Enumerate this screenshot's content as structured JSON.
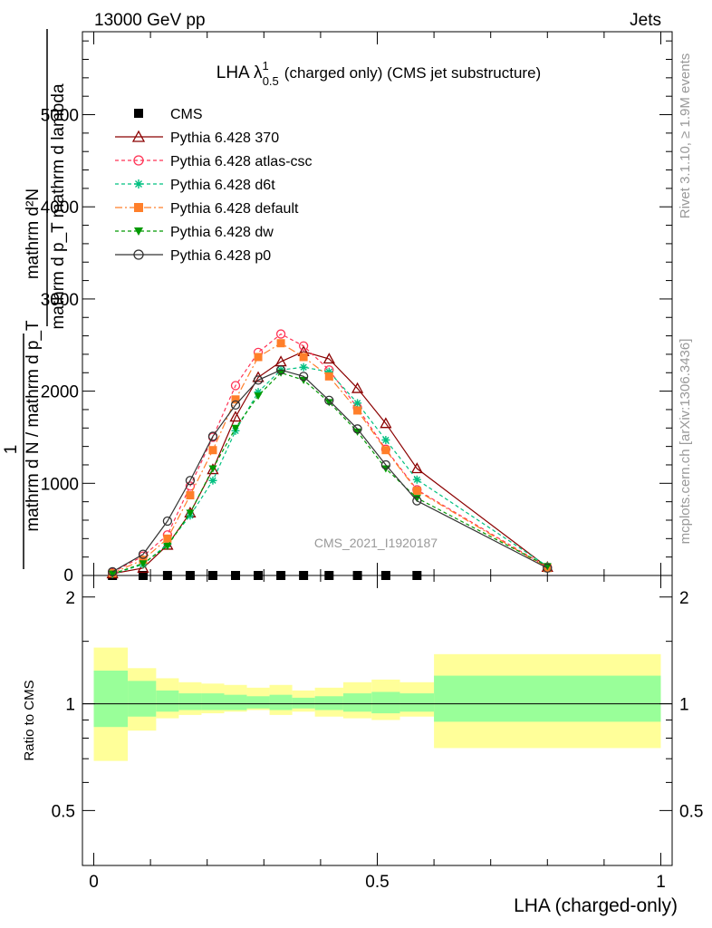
{
  "header": {
    "left": "13000 GeV pp",
    "right": "Jets"
  },
  "side": {
    "rivet": "Rivet 3.1.10, ≥ 1.9M events",
    "mcplots": "mcplots.cern.ch [arXiv:1306.3436]"
  },
  "watermark": "CMS_2021_I1920187",
  "colors": {
    "cms": "#000000",
    "p370": "#8b0000",
    "atlas_csc": "#ff3355",
    "d6t": "#00c080",
    "default": "#ff7f2a",
    "dw": "#009900",
    "p0": "#333333",
    "band_inner": "#99ff99",
    "band_outer": "#ffff99"
  },
  "chart_data": [
    {
      "type": "line",
      "title_main": "LHA λ",
      "title_sup": "1",
      "title_sub": "0.5",
      "title_rest": "(charged only) (CMS jet substructure)",
      "ylabel_top": "mathrm d²N",
      "ylabel_mid": "mathrm d p_T mathrm d lambda",
      "ylabel_one": "1",
      "ylabel_bottom": "mathrm d N / mathrm d p_T",
      "ylim": [
        0,
        5900
      ],
      "xlim": [
        -0.02,
        1.02
      ],
      "yticks": [
        {
          "v": 1000,
          "label": "1000"
        },
        {
          "v": 2000,
          "label": "2000"
        },
        {
          "v": 3000,
          "label": "3000"
        },
        {
          "v": 4000,
          "label": "4000"
        },
        {
          "v": 5000,
          "label": "5000"
        }
      ],
      "x": [
        0.033,
        0.087,
        0.13,
        0.17,
        0.21,
        0.25,
        0.29,
        0.33,
        0.37,
        0.415,
        0.465,
        0.515,
        0.57,
        0.8
      ],
      "series": [
        {
          "key": "cms",
          "name": "CMS",
          "marker": "square",
          "dash": "",
          "values": [
            0,
            0,
            0,
            0,
            0,
            0,
            0,
            0,
            0,
            0,
            0,
            0,
            0,
            null
          ]
        },
        {
          "key": "p370",
          "name": "Pythia 6.428 370",
          "marker": "triangle",
          "dash": "",
          "values": [
            20,
            80,
            330,
            680,
            1150,
            1720,
            2150,
            2320,
            2430,
            2350,
            2030,
            1650,
            1160,
            90
          ]
        },
        {
          "key": "atlas_csc",
          "name": "Pythia 6.428 atlas-csc",
          "marker": "circle",
          "dash": "4,3",
          "values": [
            35,
            210,
            440,
            970,
            1500,
            2060,
            2420,
            2620,
            2490,
            2230,
            1820,
            1370,
            930,
            90
          ]
        },
        {
          "key": "d6t",
          "name": "Pythia 6.428 d6t",
          "marker": "star",
          "dash": "4,3",
          "values": [
            15,
            120,
            340,
            650,
            1030,
            1570,
            1990,
            2230,
            2260,
            2210,
            1870,
            1470,
            1040,
            100
          ]
        },
        {
          "key": "default",
          "name": "Pythia 6.428 default",
          "marker": "square",
          "dash": "8,3,2,3",
          "values": [
            25,
            170,
            400,
            870,
            1360,
            1910,
            2370,
            2520,
            2370,
            2160,
            1790,
            1360,
            920,
            80
          ]
        },
        {
          "key": "dw",
          "name": "Pythia 6.428 dw",
          "marker": "triangle-down",
          "dash": "4,3",
          "values": [
            18,
            130,
            320,
            680,
            1160,
            1600,
            1950,
            2200,
            2120,
            1880,
            1560,
            1160,
            840,
            100
          ]
        },
        {
          "key": "p0",
          "name": "Pythia 6.428 p0",
          "marker": "open-circle",
          "dash": "",
          "values": [
            40,
            230,
            590,
            1030,
            1510,
            1850,
            2120,
            2230,
            2160,
            1900,
            1590,
            1200,
            810,
            80
          ]
        }
      ]
    },
    {
      "type": "area",
      "ylabel": "Ratio to CMS",
      "xlabel": "LHA (charged-only)",
      "ylim": [
        0.35,
        2.3
      ],
      "yticks": [
        {
          "v": 0.5,
          "label": "0.5"
        },
        {
          "v": 1,
          "label": "1"
        },
        {
          "v": 2,
          "label": "2"
        }
      ],
      "xticks": [
        {
          "v": 0,
          "label": "0"
        },
        {
          "v": 0.5,
          "label": "0.5"
        },
        {
          "v": 1,
          "label": "1"
        }
      ],
      "bin_edges": [
        0.0,
        0.06,
        0.11,
        0.15,
        0.19,
        0.23,
        0.27,
        0.31,
        0.35,
        0.39,
        0.44,
        0.49,
        0.54,
        0.6,
        1.0
      ],
      "inner_band": {
        "low": [
          0.86,
          0.92,
          0.95,
          0.96,
          0.96,
          0.96,
          0.97,
          0.96,
          0.97,
          0.96,
          0.95,
          0.94,
          0.95,
          0.89
        ],
        "high": [
          1.24,
          1.16,
          1.09,
          1.07,
          1.07,
          1.06,
          1.05,
          1.06,
          1.04,
          1.05,
          1.07,
          1.08,
          1.07,
          1.2
        ]
      },
      "outer_band": {
        "low": [
          0.69,
          0.84,
          0.91,
          0.93,
          0.94,
          0.95,
          0.96,
          0.93,
          0.95,
          0.92,
          0.91,
          0.9,
          0.92,
          0.75
        ],
        "high": [
          1.44,
          1.26,
          1.18,
          1.15,
          1.14,
          1.13,
          1.11,
          1.13,
          1.09,
          1.11,
          1.15,
          1.17,
          1.15,
          1.38
        ]
      },
      "reference": 1
    }
  ]
}
